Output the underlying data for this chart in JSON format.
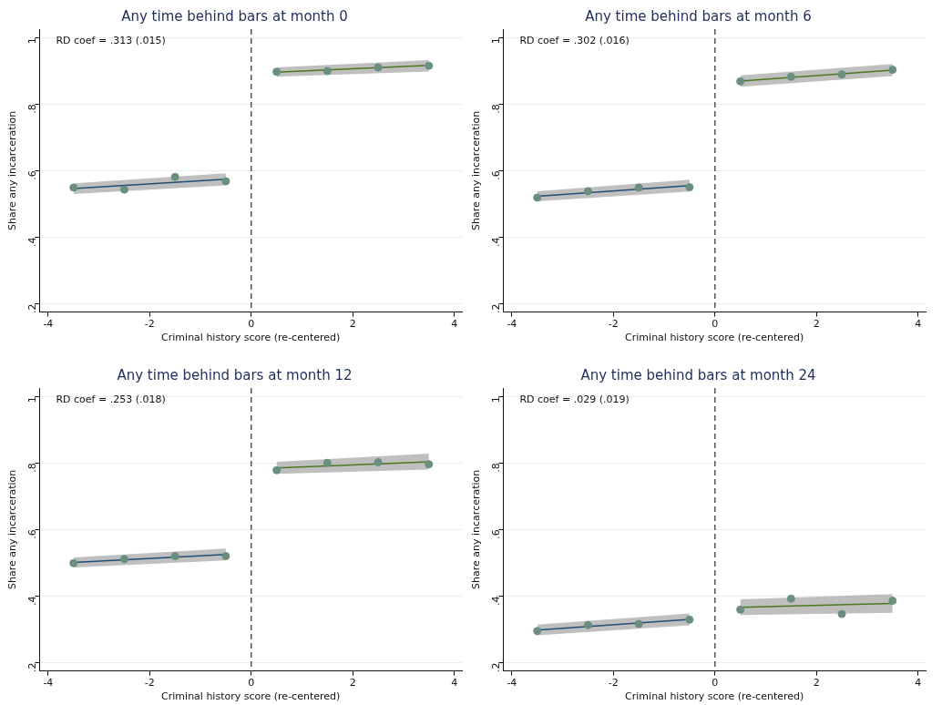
{
  "chart_data": [
    {
      "type": "scatter",
      "title": "Any time behind bars at month 0",
      "xlabel": "Criminal history score (re-centered)",
      "ylabel": "Share any incarceration",
      "xlim": [
        -4.17,
        4.15
      ],
      "xticks": [
        -4,
        -2,
        0,
        2,
        4
      ],
      "ylim": [
        0.175,
        1.025
      ],
      "yticks": [
        {
          "value": 0.2,
          "label": ".2"
        },
        {
          "value": 0.4,
          "label": ".4"
        },
        {
          "value": 0.6,
          "label": ".6"
        },
        {
          "value": 0.8,
          "label": ".8"
        },
        {
          "value": 1,
          "label": "1"
        }
      ],
      "grid": "y",
      "annotations": [
        "RD coef = .313 (.015)"
      ],
      "ref_lines": [
        {
          "axis": "x",
          "value": 0,
          "color": "#555555",
          "line_style": "dashed"
        }
      ],
      "series": [
        {
          "type": "line",
          "color": "#1f4e79",
          "x": [
            -3.5,
            -0.5
          ],
          "values": [
            0.546,
            0.574
          ],
          "lower": [
            0.53,
            0.556
          ],
          "upper": [
            0.562,
            0.592
          ]
        },
        {
          "type": "line",
          "color": "#4a7a1e",
          "x": [
            0.5,
            3.5
          ],
          "values": [
            0.896,
            0.916
          ],
          "lower": [
            0.882,
            0.898
          ],
          "upper": [
            0.91,
            0.932
          ]
        },
        {
          "type": "scatter",
          "marker": "circle",
          "color": "#6a8f7f",
          "x": [
            -3.5,
            -2.5,
            -1.5,
            -0.5,
            0.5,
            1.5,
            2.5,
            3.5
          ],
          "values": [
            0.549,
            0.543,
            0.581,
            0.568,
            0.897,
            0.899,
            0.91,
            0.915
          ]
        }
      ]
    },
    {
      "type": "scatter",
      "title": "Any time behind bars at month 6",
      "xlabel": "Criminal history score (re-centered)",
      "ylabel": "Share any incarceration",
      "xlim": [
        -4.17,
        4.15
      ],
      "xticks": [
        -4,
        -2,
        0,
        2,
        4
      ],
      "ylim": [
        0.175,
        1.025
      ],
      "yticks": [
        {
          "value": 0.2,
          "label": ".2"
        },
        {
          "value": 0.4,
          "label": ".4"
        },
        {
          "value": 0.6,
          "label": ".6"
        },
        {
          "value": 0.8,
          "label": ".8"
        },
        {
          "value": 1,
          "label": "1"
        }
      ],
      "grid": "y",
      "annotations": [
        "RD coef = .302 (.016)"
      ],
      "ref_lines": [
        {
          "axis": "x",
          "value": 0,
          "color": "#555555",
          "line_style": "dashed"
        }
      ],
      "series": [
        {
          "type": "line",
          "color": "#1f4e79",
          "x": [
            -3.5,
            -0.5
          ],
          "values": [
            0.523,
            0.555
          ],
          "lower": [
            0.508,
            0.537
          ],
          "upper": [
            0.538,
            0.573
          ]
        },
        {
          "type": "line",
          "color": "#4a7a1e",
          "x": [
            0.5,
            3.5
          ],
          "values": [
            0.869,
            0.902
          ],
          "lower": [
            0.852,
            0.884
          ],
          "upper": [
            0.886,
            0.92
          ]
        },
        {
          "type": "scatter",
          "marker": "circle",
          "color": "#6a8f7f",
          "x": [
            -3.5,
            -2.5,
            -1.5,
            -0.5,
            0.5,
            1.5,
            2.5,
            3.5
          ],
          "values": [
            0.519,
            0.538,
            0.549,
            0.55,
            0.868,
            0.882,
            0.889,
            0.903
          ]
        }
      ]
    },
    {
      "type": "scatter",
      "title": "Any time behind bars at month 12",
      "xlabel": "Criminal history score (re-centered)",
      "ylabel": "Share any incarceration",
      "xlim": [
        -4.17,
        4.15
      ],
      "xticks": [
        -4,
        -2,
        0,
        2,
        4
      ],
      "ylim": [
        0.175,
        1.025
      ],
      "yticks": [
        {
          "value": 0.2,
          "label": ".2"
        },
        {
          "value": 0.4,
          "label": ".4"
        },
        {
          "value": 0.6,
          "label": ".6"
        },
        {
          "value": 0.8,
          "label": ".8"
        },
        {
          "value": 1,
          "label": "1"
        }
      ],
      "grid": "y",
      "annotations": [
        "RD coef = .253 (.018)"
      ],
      "ref_lines": [
        {
          "axis": "x",
          "value": 0,
          "color": "#555555",
          "line_style": "dashed"
        }
      ],
      "series": [
        {
          "type": "line",
          "color": "#1f4e79",
          "x": [
            -3.5,
            -0.5
          ],
          "values": [
            0.501,
            0.525
          ],
          "lower": [
            0.486,
            0.507
          ],
          "upper": [
            0.516,
            0.543
          ]
        },
        {
          "type": "line",
          "color": "#4a7a1e",
          "x": [
            0.5,
            3.5
          ],
          "values": [
            0.785,
            0.803
          ],
          "lower": [
            0.767,
            0.78
          ],
          "upper": [
            0.803,
            0.828
          ]
        },
        {
          "type": "scatter",
          "marker": "circle",
          "color": "#6a8f7f",
          "x": [
            -3.5,
            -2.5,
            -1.5,
            -0.5,
            0.5,
            1.5,
            2.5,
            3.5
          ],
          "values": [
            0.499,
            0.511,
            0.52,
            0.52,
            0.778,
            0.8,
            0.802,
            0.796
          ]
        }
      ]
    },
    {
      "type": "scatter",
      "title": "Any time behind bars at month 24",
      "xlabel": "Criminal history score (re-centered)",
      "ylabel": "Share any incarceration",
      "xlim": [
        -4.17,
        4.15
      ],
      "xticks": [
        -4,
        -2,
        0,
        2,
        4
      ],
      "ylim": [
        0.175,
        1.025
      ],
      "yticks": [
        {
          "value": 0.2,
          "label": ".2"
        },
        {
          "value": 0.4,
          "label": ".4"
        },
        {
          "value": 0.6,
          "label": ".6"
        },
        {
          "value": 0.8,
          "label": ".8"
        },
        {
          "value": 1,
          "label": "1"
        }
      ],
      "grid": "y",
      "annotations": [
        "RD coef = .029 (.019)"
      ],
      "ref_lines": [
        {
          "axis": "x",
          "value": 0,
          "color": "#555555",
          "line_style": "dashed"
        }
      ],
      "series": [
        {
          "type": "line",
          "color": "#1f4e79",
          "x": [
            -3.5,
            -0.5
          ],
          "values": [
            0.298,
            0.33
          ],
          "lower": [
            0.282,
            0.312
          ],
          "upper": [
            0.314,
            0.348
          ]
        },
        {
          "type": "line",
          "color": "#4a7a1e",
          "x": [
            0.5,
            3.5
          ],
          "values": [
            0.366,
            0.378
          ],
          "lower": [
            0.343,
            0.35
          ],
          "upper": [
            0.39,
            0.406
          ]
        },
        {
          "type": "scatter",
          "marker": "circle",
          "color": "#6a8f7f",
          "x": [
            -3.5,
            -2.5,
            -1.5,
            -0.5,
            0.5,
            1.5,
            2.5,
            3.5
          ],
          "values": [
            0.295,
            0.313,
            0.316,
            0.329,
            0.359,
            0.392,
            0.346,
            0.386
          ]
        }
      ]
    }
  ]
}
